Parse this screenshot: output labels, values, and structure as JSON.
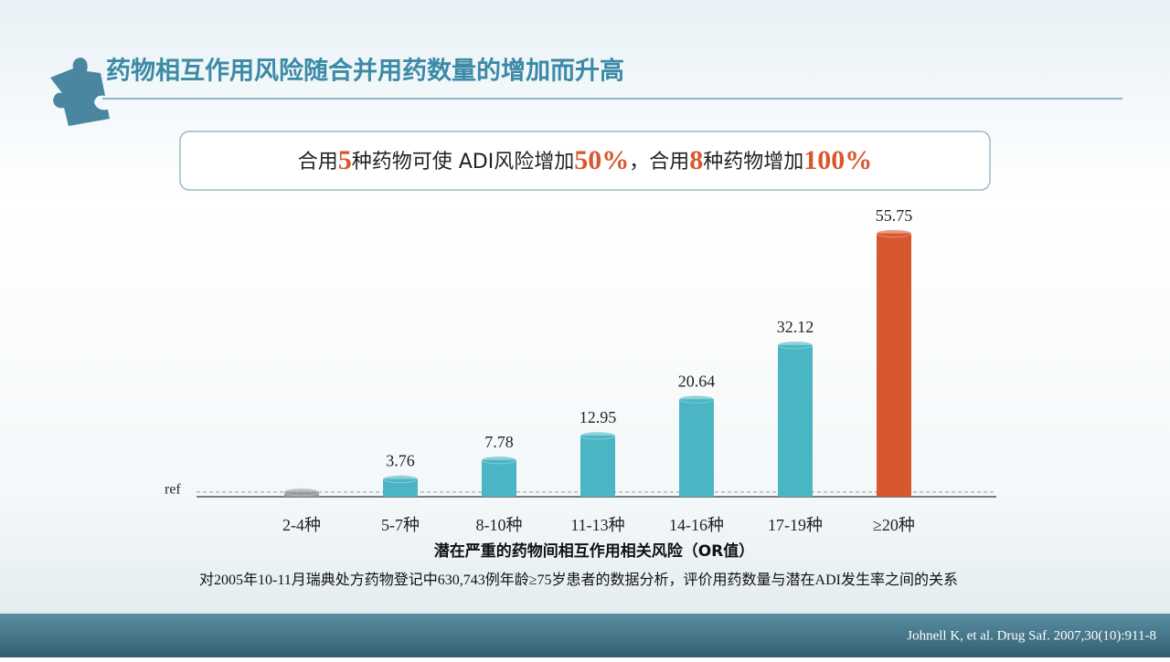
{
  "chart_data": {
    "type": "bar",
    "title": "药物相互作用风险随合并用药数量的增加而升高",
    "callout": [
      "合用",
      "5",
      "种药物可使 ADI风险增加",
      "50%",
      "，合用",
      "8",
      "种药物增加",
      "100%"
    ],
    "categories": [
      "2-4种",
      "5-7种",
      "8-10种",
      "11-13种",
      "14-16种",
      "17-19种",
      "≥20种"
    ],
    "values": [
      1,
      3.76,
      7.78,
      12.95,
      20.64,
      32.12,
      55.75
    ],
    "value_labels": [
      null,
      "3.76",
      "7.78",
      "12.95",
      "20.64",
      "32.12",
      "55.75"
    ],
    "colors": [
      "#9a9a9a",
      "#4ab6c4",
      "#4ab6c4",
      "#4ab6c4",
      "#4ab6c4",
      "#4ab6c4",
      "#d7582f"
    ],
    "reference": {
      "value": 1,
      "label": "ref"
    },
    "ylim": [
      0,
      58
    ],
    "x_label": "潜在严重的药物间相互作用相关风险（OR值）",
    "note": "对2005年10-11月瑞典处方药物登记中630,743例年龄≥75岁患者的数据分析，评价用药数量与潜在ADI发生率之间的关系",
    "source": "Johnell K, et al. Drug Saf. 2007,30(10):911-8"
  }
}
